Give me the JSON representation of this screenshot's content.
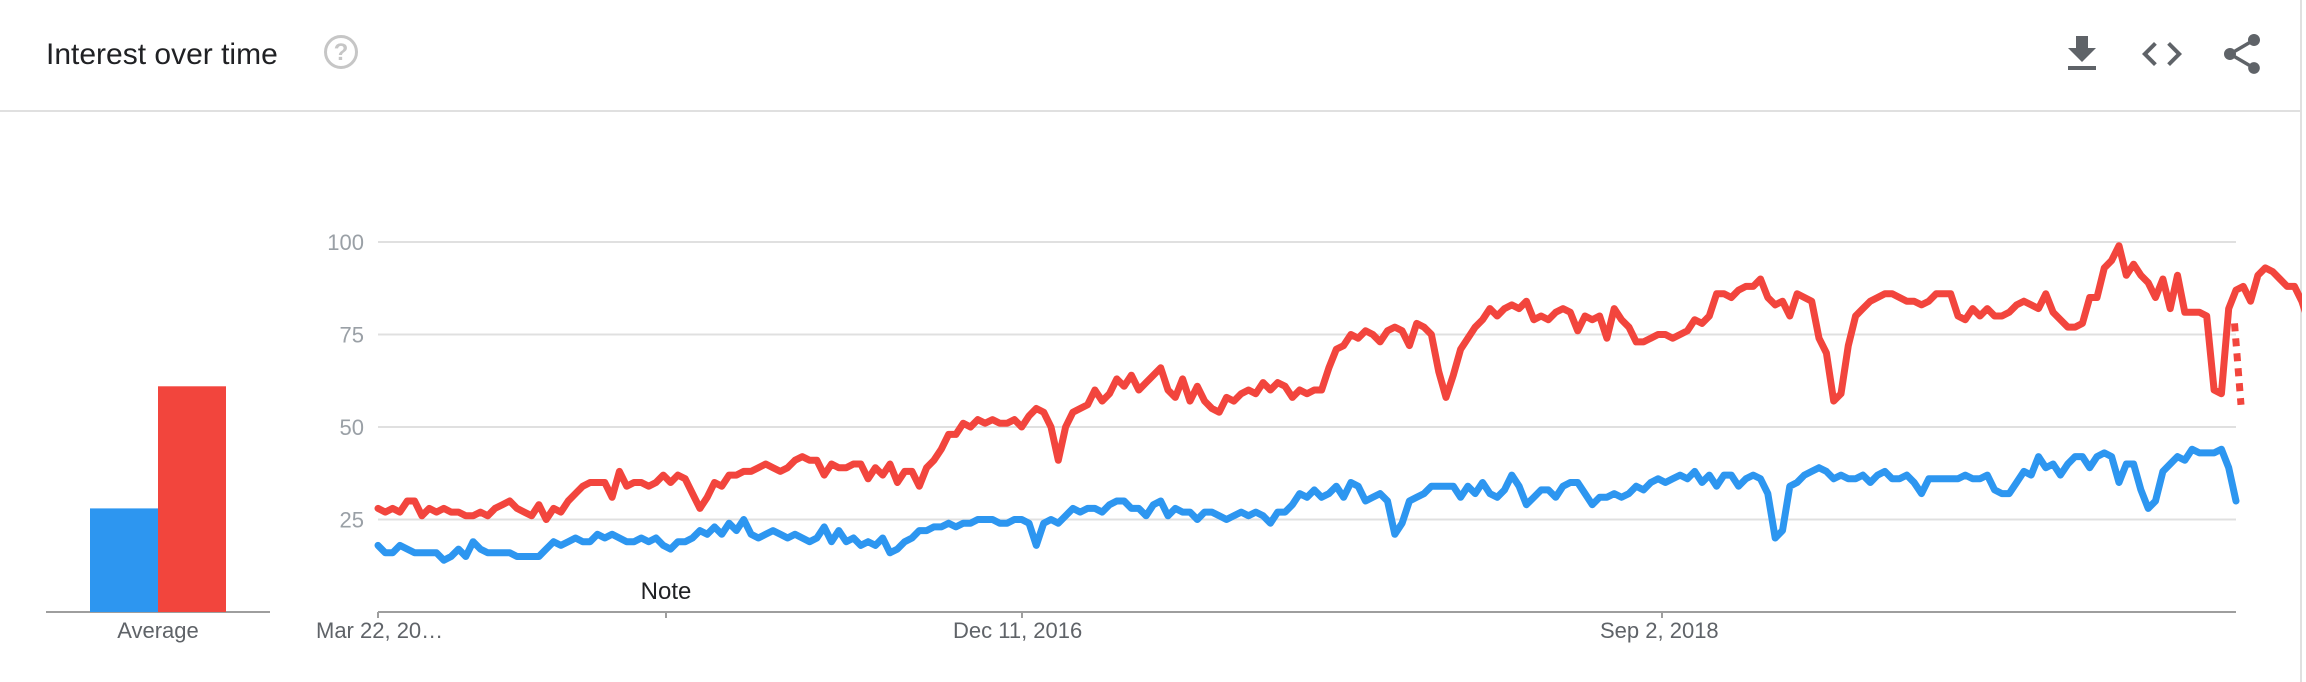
{
  "header": {
    "title": "Interest over time",
    "help_glyph": "?",
    "icons": [
      "download-icon",
      "embed-icon",
      "share-icon"
    ]
  },
  "average": {
    "label": "Average",
    "values": [
      28,
      61
    ]
  },
  "note": {
    "label": "Note"
  },
  "colors": {
    "series_blue": "#2d96f0",
    "series_red": "#f2453d",
    "grid": "#e0e0e0",
    "tick": "#9aa0a6"
  },
  "chart_data": {
    "type": "line",
    "ylim": [
      0,
      100
    ],
    "yticks": [
      {
        "value": 25,
        "label": "25"
      },
      {
        "value": 50,
        "label": "50"
      },
      {
        "value": 75,
        "label": "75"
      },
      {
        "value": 100,
        "label": "100"
      }
    ],
    "xlabels": [
      "Mar 22, 20…",
      "Dec 11, 2016",
      "Sep 2, 2018"
    ],
    "x_start": "2015-03-22",
    "partial_last_point": true,
    "grid": true,
    "series": [
      {
        "color": "#2d96f0",
        "values": [
          18,
          16,
          16,
          18,
          17,
          16,
          16,
          16,
          16,
          14,
          15,
          17,
          15,
          19,
          17,
          16,
          16,
          16,
          16,
          15,
          15,
          15,
          15,
          17,
          19,
          18,
          19,
          20,
          19,
          19,
          21,
          20,
          21,
          20,
          19,
          19,
          20,
          19,
          20,
          18,
          17,
          19,
          19,
          20,
          22,
          21,
          23,
          21,
          24,
          22,
          25,
          21,
          20,
          21,
          22,
          21,
          20,
          21,
          20,
          19,
          20,
          23,
          19,
          22,
          19,
          20,
          18,
          19,
          18,
          20,
          16,
          17,
          19,
          20,
          22,
          22,
          23,
          23,
          24,
          23,
          24,
          24,
          25,
          25,
          25,
          24,
          24,
          25,
          25,
          24,
          18,
          24,
          25,
          24,
          26,
          28,
          27,
          28,
          28,
          27,
          29,
          30,
          30,
          28,
          28,
          26,
          29,
          30,
          26,
          28,
          27,
          27,
          25,
          27,
          27,
          26,
          25,
          26,
          27,
          26,
          27,
          26,
          24,
          27,
          27,
          29,
          32,
          31,
          33,
          31,
          32,
          34,
          31,
          35,
          34,
          30,
          31,
          32,
          30,
          21,
          24,
          30,
          31,
          32,
          34,
          34,
          34,
          34,
          31,
          34,
          32,
          35,
          32,
          31,
          33,
          37,
          34,
          29,
          31,
          33,
          33,
          31,
          34,
          35,
          35,
          32,
          29,
          31,
          31,
          32,
          31,
          32,
          34,
          33,
          35,
          36,
          35,
          36,
          37,
          36,
          38,
          35,
          37,
          34,
          37,
          37,
          34,
          36,
          37,
          36,
          32,
          20,
          22,
          34,
          35,
          37,
          38,
          39,
          38,
          36,
          37,
          36,
          36,
          37,
          35,
          37,
          38,
          36,
          36,
          37,
          35,
          32,
          36,
          36,
          36,
          36,
          36,
          37,
          36,
          36,
          37,
          33,
          32,
          32,
          35,
          38,
          37,
          42,
          39,
          40,
          37,
          40,
          42,
          42,
          39,
          42,
          43,
          42,
          35,
          40,
          40,
          33,
          28,
          30,
          38,
          40,
          42,
          41,
          44,
          43,
          43,
          43,
          44,
          39,
          30
        ],
        "partial": false
      },
      {
        "color": "#f2453d",
        "values": [
          28,
          27,
          28,
          27,
          30,
          30,
          26,
          28,
          27,
          28,
          27,
          27,
          26,
          26,
          27,
          26,
          28,
          29,
          30,
          28,
          27,
          26,
          29,
          25,
          28,
          27,
          30,
          32,
          34,
          35,
          35,
          35,
          31,
          38,
          34,
          35,
          35,
          34,
          35,
          37,
          35,
          37,
          36,
          32,
          28,
          31,
          35,
          34,
          37,
          37,
          38,
          38,
          39,
          40,
          39,
          38,
          39,
          41,
          42,
          41,
          41,
          37,
          40,
          39,
          39,
          40,
          40,
          36,
          39,
          37,
          40,
          35,
          38,
          38,
          34,
          39,
          41,
          44,
          48,
          48,
          51,
          50,
          52,
          51,
          52,
          51,
          51,
          52,
          50,
          53,
          55,
          54,
          50,
          41,
          50,
          54,
          55,
          56,
          60,
          57,
          59,
          63,
          61,
          64,
          60,
          62,
          64,
          66,
          60,
          58,
          63,
          57,
          61,
          57,
          55,
          54,
          58,
          57,
          59,
          60,
          59,
          62,
          60,
          62,
          61,
          58,
          60,
          59,
          60,
          60,
          66,
          71,
          72,
          75,
          74,
          76,
          75,
          73,
          76,
          77,
          76,
          72,
          78,
          77,
          75,
          65,
          58,
          64,
          71,
          74,
          77,
          79,
          82,
          80,
          82,
          83,
          82,
          84,
          79,
          80,
          79,
          81,
          82,
          81,
          76,
          80,
          79,
          80,
          74,
          82,
          79,
          77,
          73,
          73,
          74,
          75,
          75,
          74,
          75,
          76,
          79,
          78,
          80,
          86,
          86,
          85,
          87,
          88,
          88,
          90,
          85,
          83,
          84,
          80,
          86,
          85,
          84,
          74,
          70,
          57,
          59,
          72,
          80,
          82,
          84,
          85,
          86,
          86,
          85,
          84,
          84,
          83,
          84,
          86,
          86,
          86,
          80,
          79,
          82,
          80,
          82,
          80,
          80,
          81,
          83,
          84,
          83,
          82,
          86,
          81,
          79,
          77,
          77,
          78,
          85,
          85,
          93,
          95,
          99,
          91,
          94,
          91,
          89,
          85,
          90,
          82,
          91,
          81,
          81,
          81,
          80,
          60,
          59,
          82,
          87,
          88,
          84,
          91,
          93,
          92,
          90,
          88,
          88,
          84,
          78
        ],
        "partial": false
      },
      {
        "color": "#f2453d",
        "values": [
          78,
          56
        ],
        "partial": true
      }
    ]
  }
}
